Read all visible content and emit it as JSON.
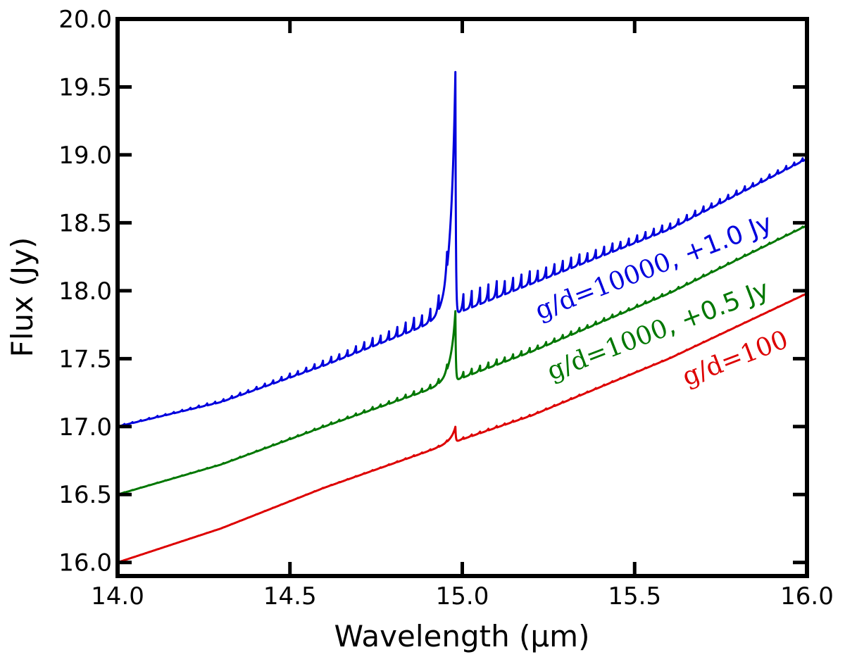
{
  "chart_data": {
    "type": "line",
    "title": "",
    "xlabel": "Wavelength (μm)",
    "ylabel": "Flux (Jy)",
    "xlim": [
      14.0,
      16.0
    ],
    "ylim": [
      15.9,
      20.0
    ],
    "xticks": [
      14.0,
      14.5,
      15.0,
      15.5,
      16.0
    ],
    "xtick_labels": [
      "14.0",
      "14.5",
      "15.0",
      "15.5",
      "16.0"
    ],
    "yticks": [
      16.0,
      16.5,
      17.0,
      17.5,
      18.0,
      18.5,
      19.0,
      19.5,
      20.0
    ],
    "ytick_labels": [
      "16.0",
      "16.5",
      "17.0",
      "17.5",
      "18.0",
      "18.5",
      "19.0",
      "19.5",
      "20.0"
    ],
    "grid": false,
    "legend": "none",
    "series": [
      {
        "name": "g/d=100",
        "color": "#dd0000",
        "baseline": [
          [
            14.0,
            16.0
          ],
          [
            14.3,
            16.25
          ],
          [
            14.6,
            16.55
          ],
          [
            14.97,
            16.88
          ],
          [
            15.2,
            17.08
          ],
          [
            15.6,
            17.5
          ],
          [
            16.0,
            17.98
          ]
        ],
        "peak": {
          "x": 14.98,
          "height": 0.1
        },
        "oscillation": {
          "amp_left": 0.01,
          "amp_right": 0.015,
          "pitch": 0.024
        },
        "annotation": {
          "label": "g/d=100",
          "suffix": "",
          "position": "lower-right"
        }
      },
      {
        "name": "g/d=1000, +0.5 Jy",
        "color": "#007700",
        "baseline": [
          [
            14.0,
            16.5
          ],
          [
            14.3,
            16.72
          ],
          [
            14.6,
            17.0
          ],
          [
            14.97,
            17.33
          ],
          [
            15.2,
            17.55
          ],
          [
            15.6,
            17.98
          ],
          [
            16.0,
            18.48
          ]
        ],
        "peak": {
          "x": 14.98,
          "height": 0.47
        },
        "oscillation": {
          "amp_left": 0.04,
          "amp_right": 0.05,
          "pitch": 0.024
        },
        "annotation": {
          "label": "g/d=1000",
          "suffix": ", +0.5 Jy",
          "position": "upper-right"
        }
      },
      {
        "name": "g/d=10000, +1.0 Jy",
        "color": "#0000dd",
        "baseline": [
          [
            14.0,
            17.0
          ],
          [
            14.3,
            17.18
          ],
          [
            14.6,
            17.45
          ],
          [
            14.97,
            17.82
          ],
          [
            15.2,
            18.05
          ],
          [
            15.6,
            18.45
          ],
          [
            16.0,
            18.97
          ]
        ],
        "peak": {
          "x": 14.98,
          "height": 1.65
        },
        "oscillation": {
          "amp_left": 0.13,
          "amp_right": 0.15,
          "pitch": 0.024
        },
        "annotation": {
          "label": "g/d=10000",
          "suffix": ", +1.0 Jy",
          "position": "upper-right"
        }
      }
    ]
  }
}
